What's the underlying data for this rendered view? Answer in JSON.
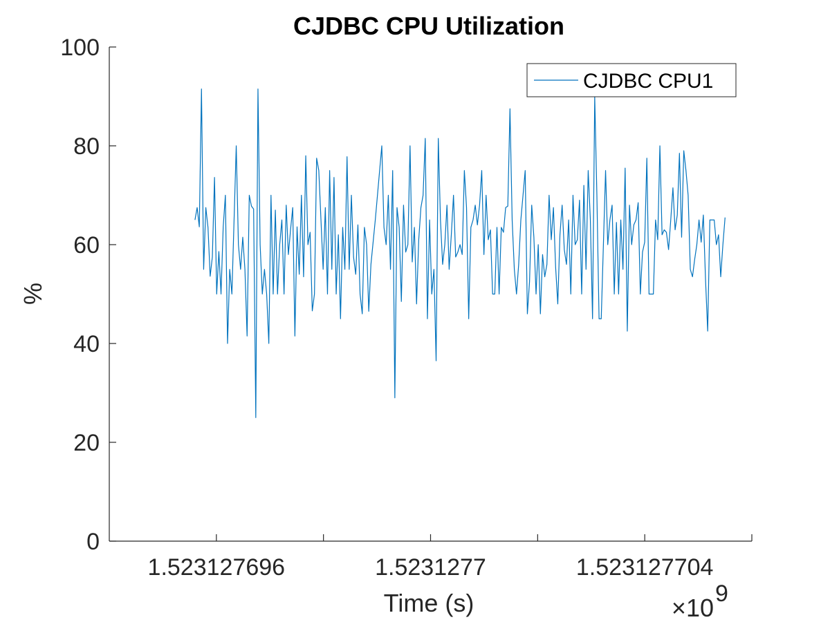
{
  "chart_data": {
    "type": "line",
    "title": "CJDBC CPU Utilization",
    "xlabel": "Time (s)",
    "ylabel": "%",
    "x_exponent_label": "×10",
    "x_exponent_power": "9",
    "x_tick_labels": [
      "1.523127696",
      "1.5231277",
      "1.523127704"
    ],
    "x_tick_values": [
      1.523127696,
      1.5231277,
      1.523127704
    ],
    "x_minor_tick_values": [
      1.523127698,
      1.523127702
    ],
    "y_tick_labels": [
      "0",
      "20",
      "40",
      "60",
      "80",
      "100"
    ],
    "y_tick_values": [
      0,
      20,
      40,
      60,
      80,
      100
    ],
    "xlim": [
      1.523127694,
      1.523127706
    ],
    "ylim": [
      0,
      100
    ],
    "grid": false,
    "legend_position": "top-right",
    "series": [
      {
        "name": "CJDBC CPU1",
        "color": "#0072BD",
        "x_start": 1.5231276956,
        "x_end": 1.5231277055,
        "values": [
          65,
          67.5,
          63.6,
          91.5,
          55,
          67.5,
          63.5,
          53.6,
          57.5,
          73.6,
          50,
          58.6,
          50,
          63.6,
          70,
          40,
          55,
          50,
          65,
          80,
          60,
          55,
          61.5,
          55,
          41.5,
          70,
          67.8,
          67.2,
          25,
          91.5,
          60,
          50,
          55,
          50,
          40,
          70,
          50,
          67,
          50,
          60,
          65,
          50,
          68,
          58,
          63,
          67.5,
          41.5,
          63.6,
          54,
          70,
          53.5,
          78,
          60,
          62.5,
          46.6,
          50,
          77.5,
          75,
          65,
          55,
          67.5,
          50,
          75,
          55,
          73.6,
          50,
          62,
          45,
          63.5,
          55,
          77.8,
          55,
          70,
          57.5,
          54,
          64,
          50,
          46,
          63.5,
          60,
          46.5,
          56,
          60.5,
          65,
          70,
          75,
          80,
          63.5,
          60,
          70,
          55,
          75,
          29,
          67.5,
          63.5,
          48.5,
          68,
          58.5,
          60,
          80,
          56.5,
          63.5,
          48,
          61,
          67.5,
          70,
          81.5,
          45,
          65,
          50,
          55,
          36.5,
          81.5,
          65,
          56,
          60,
          68,
          55,
          62,
          70,
          57.5,
          58.5,
          60,
          58,
          75,
          67.5,
          45,
          63.5,
          65,
          68,
          64,
          68,
          75,
          58,
          70,
          61,
          63,
          50,
          50,
          63.5,
          50,
          63.5,
          62.5,
          67.5,
          67.8,
          87.5,
          65,
          55,
          50,
          56,
          65,
          70,
          75,
          46,
          52.5,
          68,
          61.5,
          50,
          60,
          46,
          58,
          53.5,
          56,
          70,
          61,
          67.5,
          55.5,
          48,
          62,
          68,
          59,
          56,
          65,
          50,
          70,
          60,
          61,
          69,
          50,
          72,
          55,
          75,
          65,
          45,
          90,
          70,
          45,
          45,
          60,
          75,
          60,
          65,
          68,
          50,
          64.5,
          50,
          65,
          55,
          75.5,
          42.5,
          68,
          60,
          64,
          65,
          68.5,
          50,
          58.5,
          60.5,
          77.5,
          50,
          50,
          50,
          65,
          61,
          80,
          62,
          63,
          62.5,
          59,
          65,
          71.5,
          63,
          66,
          78.5,
          61.5,
          79,
          75,
          70,
          55,
          53.5,
          57,
          60,
          65,
          60.5,
          66,
          53,
          42.5,
          65,
          65,
          65,
          60,
          62,
          53.5,
          60,
          65.5
        ]
      }
    ]
  }
}
